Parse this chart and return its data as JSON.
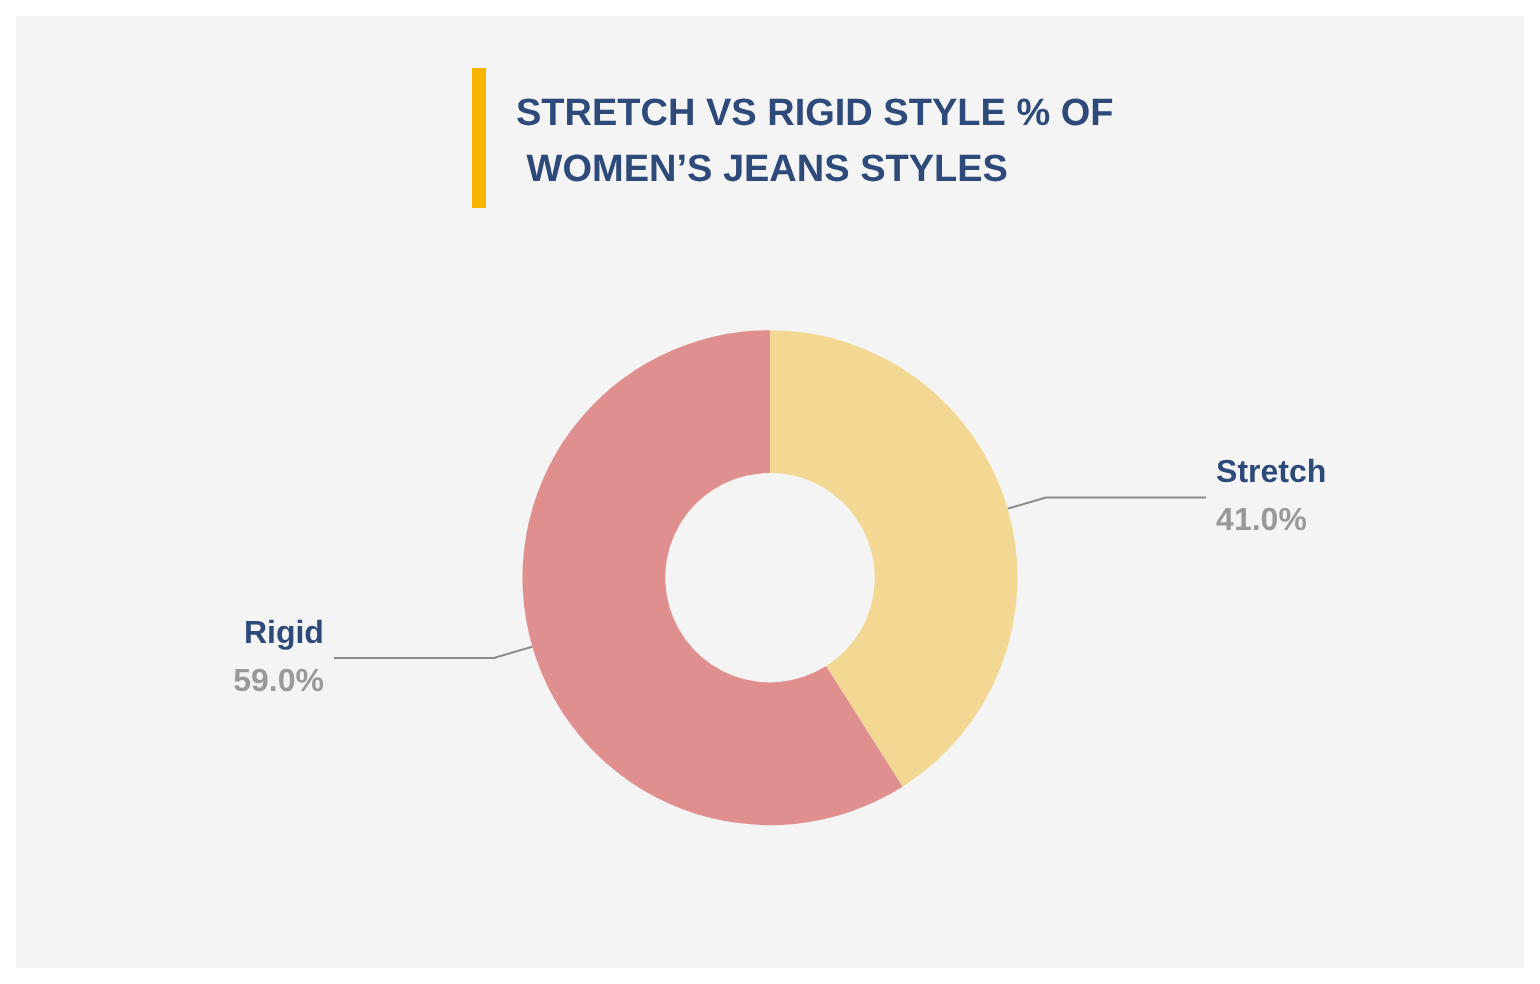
{
  "chart_data": {
    "type": "donut",
    "title": "STRETCH VS RIGID STYLE % OF WOMEN’S JEANS STYLES",
    "categories": [
      "Stretch",
      "Rigid"
    ],
    "values": [
      41.0,
      59.0
    ],
    "colors": [
      "#f2d893",
      "#e08f8f"
    ],
    "value_labels": [
      "41.0%",
      "59.0%"
    ],
    "legend": false
  }
}
